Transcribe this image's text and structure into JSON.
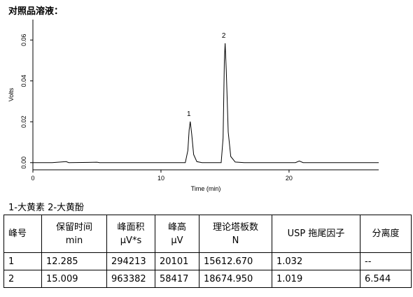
{
  "heading": "对照品溶液：",
  "chart_data": {
    "type": "line",
    "y_label": "Volts",
    "x_label": "Time (min)",
    "xlim": [
      0,
      27
    ],
    "ylim": [
      -0.0035,
      0.07
    ],
    "xticks": [
      0,
      10,
      20
    ],
    "yticks": [
      {
        "value": 0,
        "label": "0.00"
      },
      {
        "value": 0.02,
        "label": "0.02"
      },
      {
        "value": 0.04,
        "label": "0.04"
      },
      {
        "value": 0.06,
        "label": "0.06"
      }
    ],
    "color": "#000000",
    "x": [
      0,
      1.5,
      2.6,
      2.8,
      5,
      5.2,
      11.9,
      12.1,
      12.2,
      12.285,
      12.4,
      12.55,
      12.8,
      13.2,
      14.7,
      14.85,
      14.95,
      15.009,
      15.1,
      15.25,
      15.45,
      15.8,
      16.5,
      20.5,
      20.8,
      21.1,
      27
    ],
    "values": [
      0,
      0,
      0.0005,
      0,
      0.0002,
      0,
      0,
      0.006,
      0.016,
      0.0201,
      0.014,
      0.004,
      0.0005,
      0,
      0,
      0.012,
      0.05,
      0.0584,
      0.045,
      0.015,
      0.003,
      0.0003,
      0,
      0,
      0.0008,
      0,
      0
    ],
    "annotations": [
      {
        "text": "1",
        "x": 12.285,
        "y": 0.0201
      },
      {
        "text": "2",
        "x": 15.009,
        "y": 0.0584
      }
    ]
  },
  "legend_note": "1-大黄素 2-大黄酚",
  "table": {
    "header": [
      [
        "峰号"
      ],
      [
        "保留时间",
        "min"
      ],
      [
        "峰面积",
        "μV*s"
      ],
      [
        "峰高",
        "μV"
      ],
      [
        "理论塔板数",
        "N"
      ],
      [
        "USP 拖尾因子"
      ],
      [
        "分离度"
      ]
    ],
    "rows": [
      [
        "1",
        "12.285",
        "294213",
        "20101",
        "15612.670",
        "1.032",
        "--"
      ],
      [
        "2",
        "15.009",
        "963382",
        "58417",
        "18674.950",
        "1.019",
        "6.544"
      ]
    ]
  }
}
